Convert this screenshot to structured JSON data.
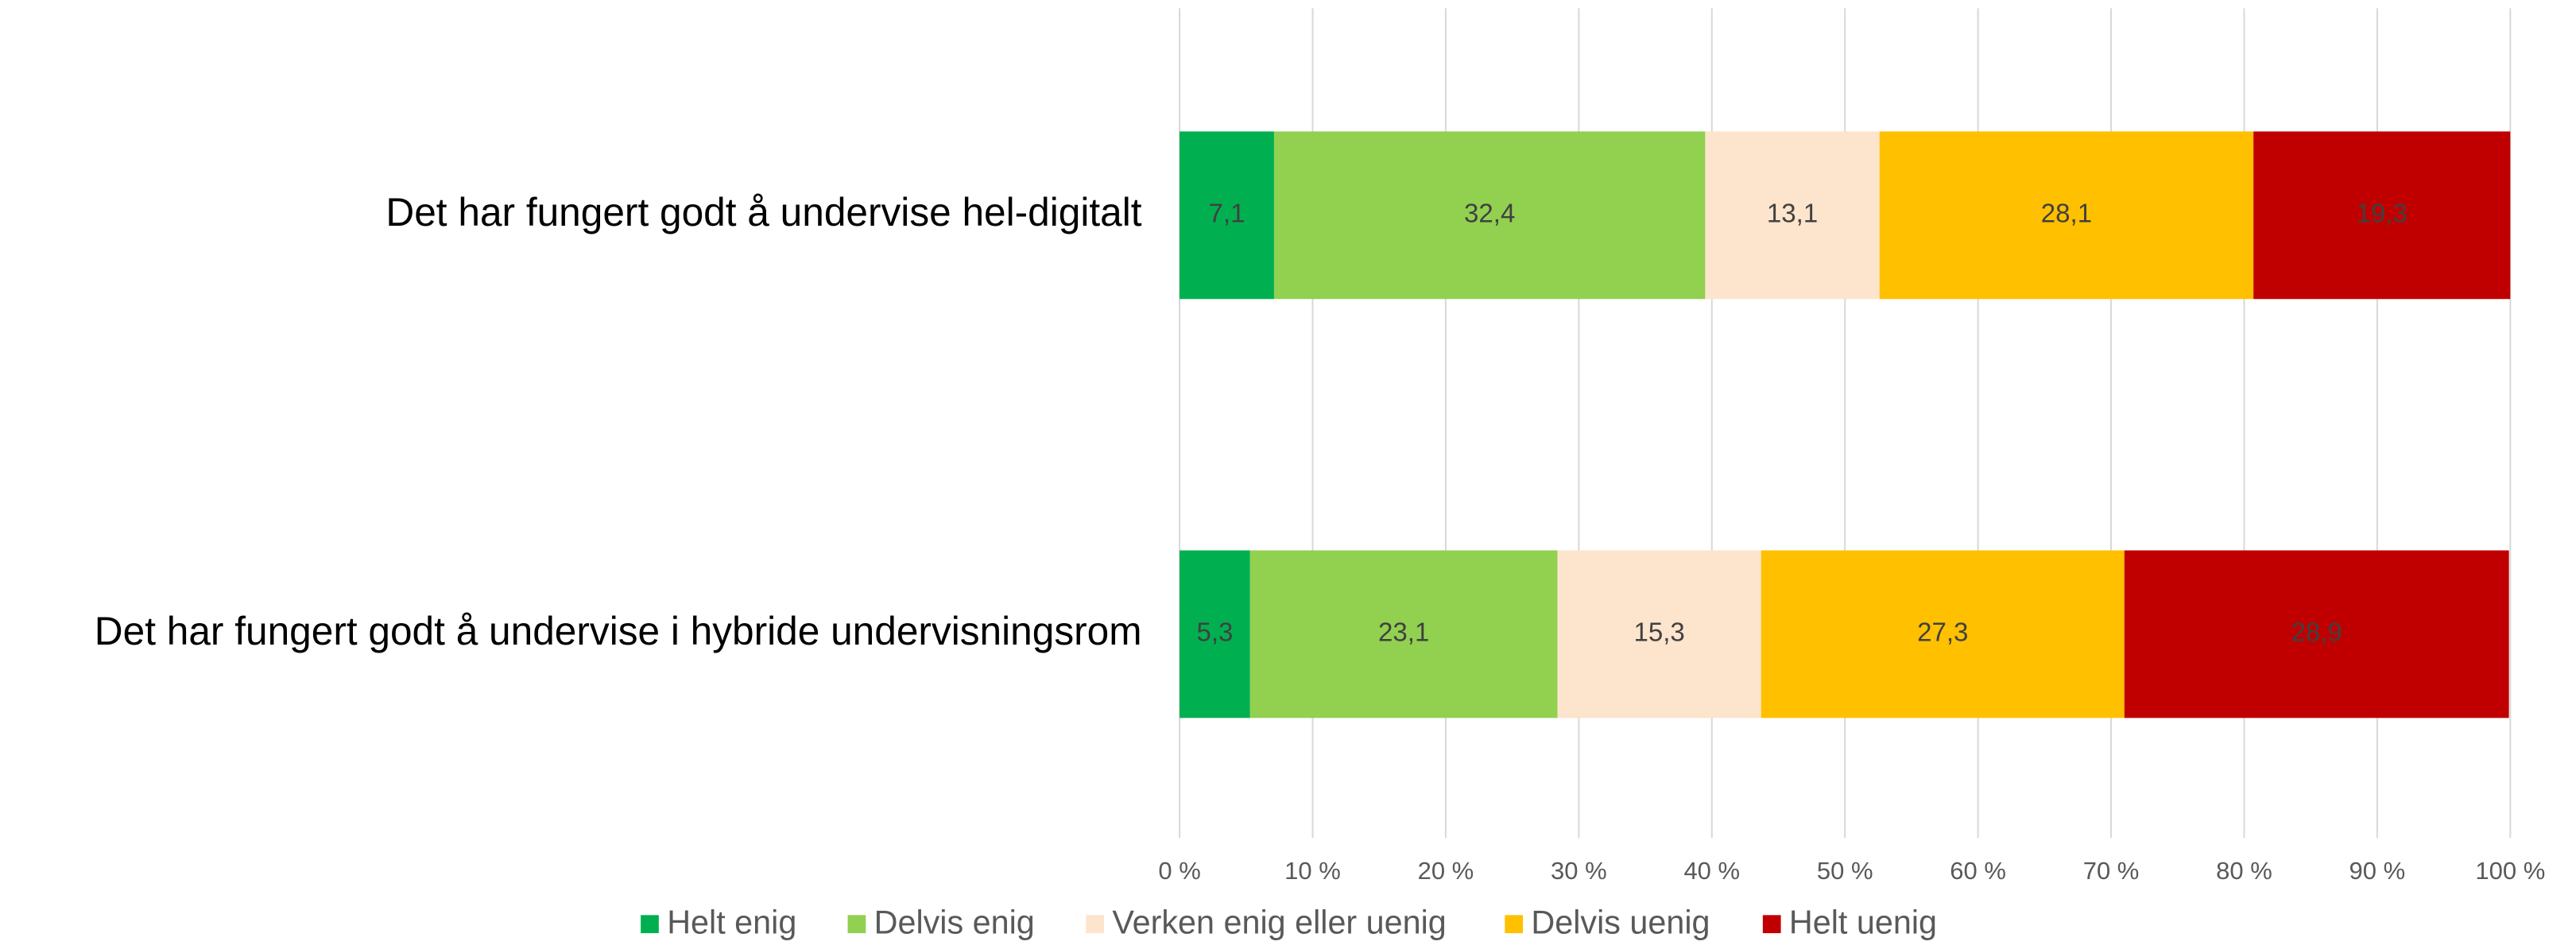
{
  "chart_data": {
    "type": "stacked-bar-horizontal",
    "categories": [
      "Det har fungert godt å undervise hel-digitalt",
      "Det har fungert godt å undervise i hybride undervisningsrom"
    ],
    "series": [
      {
        "name": "Helt enig",
        "color": "#00b050",
        "values": [
          7.1,
          5.3
        ],
        "value_labels": [
          "7,1",
          "5,3"
        ]
      },
      {
        "name": "Delvis enig",
        "color": "#92d050",
        "values": [
          32.4,
          23.1
        ],
        "value_labels": [
          "32,4",
          "23,1"
        ]
      },
      {
        "name": "Verken enig eller uenig",
        "color": "#fde4cc",
        "values": [
          13.1,
          15.3
        ],
        "value_labels": [
          "13,1",
          "15,3"
        ]
      },
      {
        "name": "Delvis uenig",
        "color": "#ffc000",
        "values": [
          28.1,
          27.3
        ],
        "value_labels": [
          "28,1",
          "27,3"
        ]
      },
      {
        "name": "Helt uenig",
        "color": "#c00000",
        "values": [
          19.3,
          28.9
        ],
        "value_labels": [
          "19,3",
          "28,9"
        ]
      }
    ],
    "xlim": [
      0,
      100
    ],
    "xticks": [
      {
        "value": 0,
        "label": "0 %"
      },
      {
        "value": 10,
        "label": "10 %"
      },
      {
        "value": 20,
        "label": "20 %"
      },
      {
        "value": 30,
        "label": "30 %"
      },
      {
        "value": 40,
        "label": "40 %"
      },
      {
        "value": 50,
        "label": "50 %"
      },
      {
        "value": 60,
        "label": "60 %"
      },
      {
        "value": 70,
        "label": "70 %"
      },
      {
        "value": 80,
        "label": "80 %"
      },
      {
        "value": 90,
        "label": "90 %"
      },
      {
        "value": 100,
        "label": "100 %"
      }
    ],
    "grid": true,
    "legend": "bottom"
  }
}
